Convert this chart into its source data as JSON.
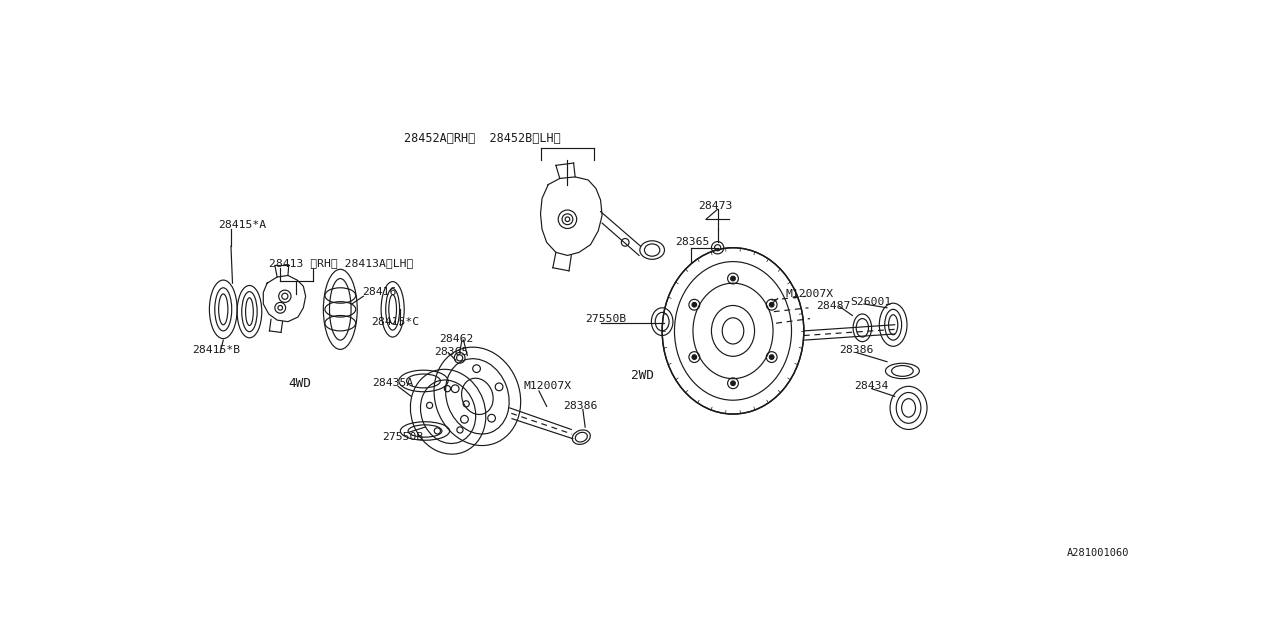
{
  "bg_color": "#ffffff",
  "line_color": "#1a1a1a",
  "fig_width": 12.8,
  "fig_height": 6.4,
  "dpi": 100,
  "watermark": "A281001060",
  "label_28452": "28452A〈RH〉  28452B〈LH〉",
  "label_28473": "28473",
  "label_28365_top": "28365",
  "label_28415A": "28415*A",
  "label_28413": "28413 〈RH〉 28413A〈LH〉",
  "label_28416": "28416",
  "label_28415B": "28415*B",
  "label_28415C": "28415*C",
  "label_28462": "28462",
  "label_28365_mid": "28365",
  "label_4WD": "4WD",
  "label_28435A": "28435A",
  "label_27550B_bot": "27550B",
  "label_M12007X_bot": "M12007X",
  "label_28386_bot": "28386",
  "label_27550B_top": "27550B",
  "label_2WD": "2WD",
  "label_M12007X_top": "M12007X",
  "label_28487": "28487",
  "label_S26001": "S26001",
  "label_28386_right": "28386",
  "label_28434": "28434"
}
